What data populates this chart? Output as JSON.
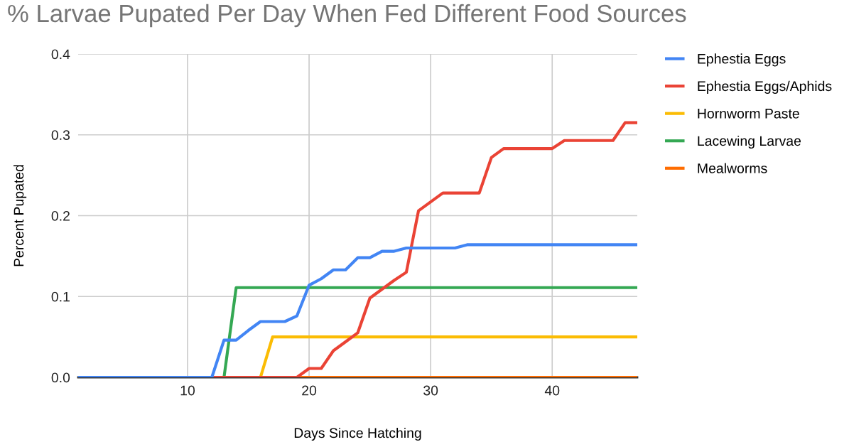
{
  "chart_data": {
    "type": "line",
    "title": "% Larvae Pupated Per Day When Fed Different Food Sources",
    "xlabel": "Days Since Hatching",
    "ylabel": "Percent Pupated",
    "xlim": [
      1,
      47
    ],
    "xticks": [
      10,
      20,
      30,
      40
    ],
    "ylim": [
      0,
      0.4
    ],
    "yticks": [
      {
        "value": 0,
        "label": "0.0"
      },
      0.1,
      0.2,
      0.3,
      0.4
    ],
    "grid": true,
    "legend": "top right",
    "marker": "none",
    "line_style": "solid",
    "series": [
      {
        "name": "Ephestia Eggs",
        "color": "#4285f4",
        "x": [
          1,
          12,
          13,
          14,
          15,
          16,
          17,
          18,
          19,
          20,
          21,
          22,
          23,
          24,
          25,
          26,
          27,
          28,
          32,
          33,
          47
        ],
        "values": [
          0,
          0,
          0.046,
          0.046,
          0.058,
          0.069,
          0.069,
          0.069,
          0.076,
          0.114,
          0.122,
          0.133,
          0.133,
          0.148,
          0.148,
          0.156,
          0.156,
          0.16,
          0.16,
          0.164,
          0.164
        ]
      },
      {
        "name": "Ephestia Eggs/Aphids",
        "color": "#ea4335",
        "x": [
          1,
          19,
          20,
          21,
          22,
          23,
          24,
          25,
          26,
          27,
          28,
          29,
          30,
          31,
          34,
          35,
          36,
          40,
          41,
          45,
          46,
          47
        ],
        "values": [
          0,
          0,
          0.011,
          0.011,
          0.033,
          0.044,
          0.055,
          0.098,
          0.109,
          0.12,
          0.13,
          0.206,
          0.217,
          0.228,
          0.228,
          0.272,
          0.283,
          0.283,
          0.293,
          0.293,
          0.315,
          0.315
        ]
      },
      {
        "name": "Hornworm Paste",
        "color": "#fbbc04",
        "x": [
          1,
          16,
          17,
          47
        ],
        "values": [
          0,
          0,
          0.05,
          0.05
        ]
      },
      {
        "name": "Lacewing Larvae",
        "color": "#34a853",
        "x": [
          1,
          13,
          14,
          47
        ],
        "values": [
          0,
          0,
          0.111,
          0.111
        ]
      },
      {
        "name": "Mealworms",
        "color": "#ff6d01",
        "x": [
          1,
          47
        ],
        "values": [
          0,
          0
        ]
      }
    ]
  }
}
